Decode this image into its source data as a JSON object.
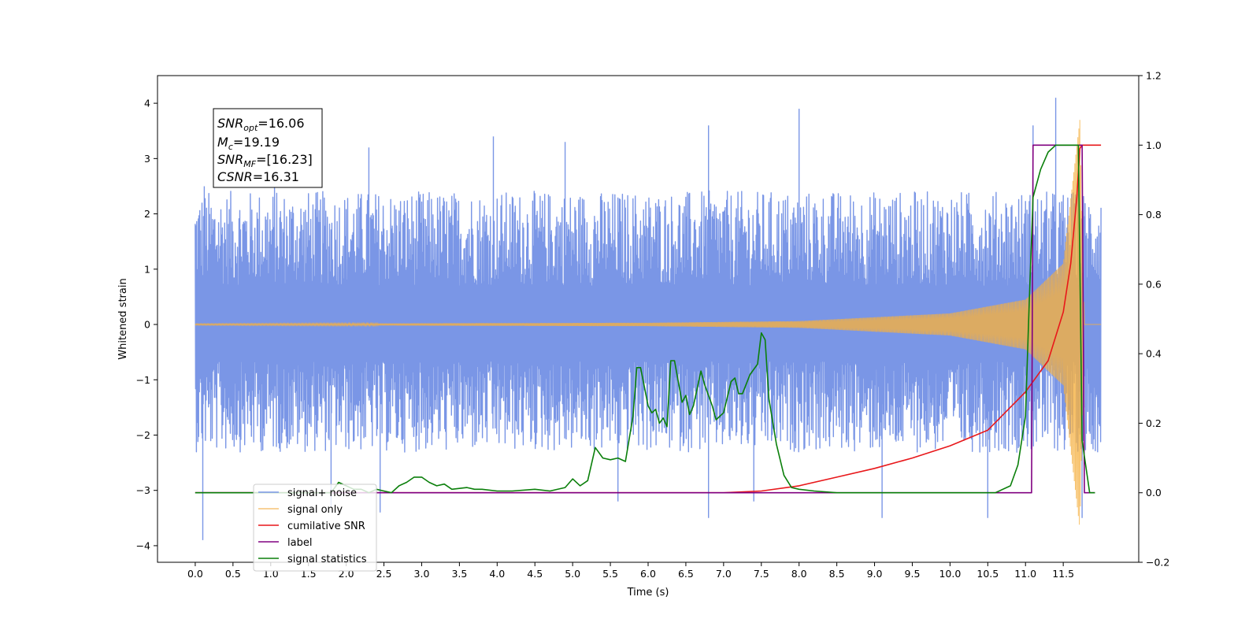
{
  "chart_data": {
    "type": "line",
    "xlabel": "Time (s)",
    "ylabel_left": "Whitened strain",
    "xlim": [
      -0.5,
      12.5
    ],
    "ylim_left": [
      -4.3,
      4.5
    ],
    "ylim_right": [
      -0.2,
      1.2
    ],
    "x_ticks": [
      0.0,
      0.5,
      1.0,
      1.5,
      2.0,
      2.5,
      3.0,
      3.5,
      4.0,
      4.5,
      5.0,
      5.5,
      6.0,
      6.5,
      7.0,
      7.5,
      8.0,
      8.5,
      9.0,
      9.5,
      10.0,
      10.5,
      11.0,
      11.5
    ],
    "x_tick_labels": [
      "0.0",
      "0.5",
      "1.0",
      "1.5",
      "2.0",
      "2.5",
      "3.0",
      "3.5",
      "4.0",
      "4.5",
      "5.0",
      "5.5",
      "6.0",
      "6.5",
      "7.0",
      "7.5",
      "8.0",
      "8.5",
      "9.0",
      "9.5",
      "10.0",
      "10.5",
      "11.0",
      "11.5"
    ],
    "y_left_ticks": [
      -4,
      -3,
      -2,
      -1,
      0,
      1,
      2,
      3,
      4
    ],
    "y_left_tick_labels": [
      "−4",
      "−3",
      "−2",
      "−1",
      "0",
      "1",
      "2",
      "3",
      "4"
    ],
    "y_right_ticks": [
      -0.2,
      0.0,
      0.2,
      0.4,
      0.6,
      0.8,
      1.0,
      1.2
    ],
    "y_right_tick_labels": [
      "−0.2",
      "0.0",
      "0.2",
      "0.4",
      "0.6",
      "0.8",
      "1.0",
      "1.2"
    ],
    "grid": false,
    "legend_placement": "lower-left",
    "annotation": {
      "lines": [
        {
          "main": "SNR",
          "sub": "opt",
          "rest": "=16.06"
        },
        {
          "main": "M",
          "sub": "c",
          "rest": "=19.19"
        },
        {
          "main": "SNR",
          "sub": "MF",
          "rest": "=[16.23]"
        },
        {
          "main": "CSNR",
          "sub": "",
          "rest": "=16.31"
        }
      ]
    },
    "series": [
      {
        "name": "signal+ noise",
        "axis": "left",
        "color": "#7a96e6",
        "style": "noise",
        "x_range": [
          0.0,
          12.0
        ],
        "envelope_upper": 2.3,
        "envelope_lower": -2.2,
        "spikes": [
          {
            "x": 0.12,
            "y": 2.5
          },
          {
            "x": 0.1,
            "y": -3.9
          },
          {
            "x": 1.05,
            "y": 3.2
          },
          {
            "x": 1.8,
            "y": -3.3
          },
          {
            "x": 2.3,
            "y": 3.2
          },
          {
            "x": 2.45,
            "y": -3.4
          },
          {
            "x": 3.95,
            "y": 3.4
          },
          {
            "x": 6.8,
            "y": 3.6
          },
          {
            "x": 7.4,
            "y": -3.2
          },
          {
            "x": 8.0,
            "y": 3.9
          },
          {
            "x": 9.1,
            "y": -3.5
          },
          {
            "x": 10.5,
            "y": -3.5
          },
          {
            "x": 11.4,
            "y": 4.1
          },
          {
            "x": 11.75,
            "y": -3.5
          },
          {
            "x": 6.8,
            "y": -3.5
          },
          {
            "x": 4.9,
            "y": 3.3
          },
          {
            "x": 5.6,
            "y": -3.2
          },
          {
            "x": 11.1,
            "y": 3.6
          }
        ]
      },
      {
        "name": "signal only",
        "axis": "left",
        "color": "#f5b041",
        "style": "chirp",
        "x_range": [
          0.0,
          12.0
        ],
        "amplitude_points": [
          [
            0.0,
            0.01
          ],
          [
            6.0,
            0.03
          ],
          [
            8.0,
            0.06
          ],
          [
            10.0,
            0.2
          ],
          [
            11.0,
            0.45
          ],
          [
            11.5,
            1.1
          ],
          [
            11.72,
            3.7
          ],
          [
            11.78,
            0.0
          ],
          [
            12.0,
            0.0
          ]
        ]
      },
      {
        "name": "cumilative SNR",
        "axis": "right",
        "color": "#e8171a",
        "style": "line",
        "points": [
          [
            0.0,
            0.0
          ],
          [
            7.0,
            0.0
          ],
          [
            7.5,
            0.005
          ],
          [
            8.0,
            0.02
          ],
          [
            8.5,
            0.045
          ],
          [
            9.0,
            0.07
          ],
          [
            9.5,
            0.1
          ],
          [
            10.0,
            0.135
          ],
          [
            10.5,
            0.18
          ],
          [
            11.0,
            0.29
          ],
          [
            11.3,
            0.38
          ],
          [
            11.5,
            0.52
          ],
          [
            11.6,
            0.66
          ],
          [
            11.68,
            0.85
          ],
          [
            11.72,
            0.99
          ],
          [
            11.75,
            1.0
          ],
          [
            12.0,
            1.0
          ]
        ]
      },
      {
        "name": "label",
        "axis": "right",
        "color": "#800080",
        "style": "line",
        "points": [
          [
            0.0,
            0.0
          ],
          [
            11.08,
            0.0
          ],
          [
            11.1,
            1.0
          ],
          [
            11.75,
            1.0
          ],
          [
            11.78,
            0.0
          ],
          [
            11.92,
            0.0
          ]
        ]
      },
      {
        "name": "signal statistics",
        "axis": "right",
        "color": "#0a7f0a",
        "style": "line",
        "points": [
          [
            0.0,
            0.0
          ],
          [
            1.8,
            0.0
          ],
          [
            1.9,
            0.03
          ],
          [
            2.0,
            0.02
          ],
          [
            2.1,
            0.01
          ],
          [
            2.2,
            0.01
          ],
          [
            2.3,
            0.0
          ],
          [
            2.4,
            0.01
          ],
          [
            2.5,
            0.005
          ],
          [
            2.6,
            0.0
          ],
          [
            2.7,
            0.02
          ],
          [
            2.8,
            0.03
          ],
          [
            2.9,
            0.045
          ],
          [
            3.0,
            0.045
          ],
          [
            3.1,
            0.03
          ],
          [
            3.2,
            0.02
          ],
          [
            3.3,
            0.025
          ],
          [
            3.4,
            0.01
          ],
          [
            3.6,
            0.015
          ],
          [
            3.7,
            0.01
          ],
          [
            3.8,
            0.01
          ],
          [
            4.0,
            0.005
          ],
          [
            4.2,
            0.005
          ],
          [
            4.5,
            0.01
          ],
          [
            4.7,
            0.005
          ],
          [
            4.9,
            0.015
          ],
          [
            5.0,
            0.04
          ],
          [
            5.1,
            0.02
          ],
          [
            5.2,
            0.035
          ],
          [
            5.3,
            0.13
          ],
          [
            5.4,
            0.1
          ],
          [
            5.5,
            0.095
          ],
          [
            5.6,
            0.1
          ],
          [
            5.7,
            0.09
          ],
          [
            5.8,
            0.22
          ],
          [
            5.85,
            0.36
          ],
          [
            5.9,
            0.36
          ],
          [
            6.0,
            0.25
          ],
          [
            6.05,
            0.23
          ],
          [
            6.1,
            0.24
          ],
          [
            6.15,
            0.2
          ],
          [
            6.2,
            0.215
          ],
          [
            6.25,
            0.19
          ],
          [
            6.3,
            0.38
          ],
          [
            6.35,
            0.38
          ],
          [
            6.45,
            0.26
          ],
          [
            6.5,
            0.28
          ],
          [
            6.55,
            0.225
          ],
          [
            6.6,
            0.25
          ],
          [
            6.7,
            0.35
          ],
          [
            6.75,
            0.31
          ],
          [
            6.85,
            0.25
          ],
          [
            6.9,
            0.21
          ],
          [
            7.0,
            0.23
          ],
          [
            7.1,
            0.32
          ],
          [
            7.15,
            0.33
          ],
          [
            7.2,
            0.285
          ],
          [
            7.25,
            0.285
          ],
          [
            7.35,
            0.34
          ],
          [
            7.45,
            0.37
          ],
          [
            7.5,
            0.46
          ],
          [
            7.55,
            0.44
          ],
          [
            7.6,
            0.27
          ],
          [
            7.7,
            0.14
          ],
          [
            7.8,
            0.05
          ],
          [
            7.9,
            0.015
          ],
          [
            8.0,
            0.01
          ],
          [
            8.2,
            0.005
          ],
          [
            8.5,
            0.0
          ],
          [
            10.6,
            0.0
          ],
          [
            10.8,
            0.02
          ],
          [
            10.9,
            0.08
          ],
          [
            11.0,
            0.22
          ],
          [
            11.05,
            0.55
          ],
          [
            11.1,
            0.85
          ],
          [
            11.2,
            0.93
          ],
          [
            11.3,
            0.98
          ],
          [
            11.4,
            1.0
          ],
          [
            11.7,
            1.0
          ],
          [
            11.75,
            0.15
          ],
          [
            11.85,
            0.0
          ],
          [
            11.92,
            0.0
          ]
        ]
      }
    ],
    "legend_entries": [
      {
        "label": "signal+ noise",
        "color": "#7a96e6"
      },
      {
        "label": "signal only",
        "color": "#f5c476"
      },
      {
        "label": "cumilative SNR",
        "color": "#e8171a"
      },
      {
        "label": "label",
        "color": "#800080"
      },
      {
        "label": "signal statistics",
        "color": "#0a7f0a"
      }
    ],
    "colors": {
      "noise": "#7a96e6",
      "signal": "#f5b041",
      "cumulative_snr": "#e8171a",
      "label": "#800080",
      "statistics": "#0a7f0a"
    }
  }
}
